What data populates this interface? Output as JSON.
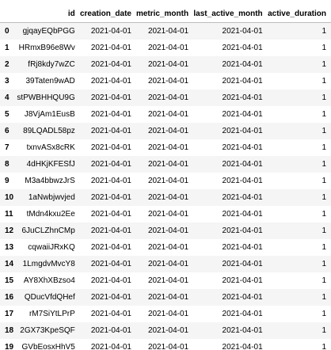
{
  "table": {
    "columns": [
      "",
      "id",
      "creation_date",
      "metric_month",
      "last_active_month",
      "active_duration"
    ],
    "rows": [
      [
        "0",
        "gjqayEQbPGG",
        "2021-04-01",
        "2021-04-01",
        "2021-04-01",
        "1"
      ],
      [
        "1",
        "HRmxB96e8Wv",
        "2021-04-01",
        "2021-04-01",
        "2021-04-01",
        "1"
      ],
      [
        "2",
        "fRj8kdy7wZC",
        "2021-04-01",
        "2021-04-01",
        "2021-04-01",
        "1"
      ],
      [
        "3",
        "39Taten9wAD",
        "2021-04-01",
        "2021-04-01",
        "2021-04-01",
        "1"
      ],
      [
        "4",
        "stPWBHHQU9G",
        "2021-04-01",
        "2021-04-01",
        "2021-04-01",
        "1"
      ],
      [
        "5",
        "J8VjAm1EusB",
        "2021-04-01",
        "2021-04-01",
        "2021-04-01",
        "1"
      ],
      [
        "6",
        "89LQADL58pz",
        "2021-04-01",
        "2021-04-01",
        "2021-04-01",
        "1"
      ],
      [
        "7",
        "txnvASx8cRK",
        "2021-04-01",
        "2021-04-01",
        "2021-04-01",
        "1"
      ],
      [
        "8",
        "4dHKjKFESfJ",
        "2021-04-01",
        "2021-04-01",
        "2021-04-01",
        "1"
      ],
      [
        "9",
        "M3a4bbwzJrS",
        "2021-04-01",
        "2021-04-01",
        "2021-04-01",
        "1"
      ],
      [
        "10",
        "1aNwbjwvjed",
        "2021-04-01",
        "2021-04-01",
        "2021-04-01",
        "1"
      ],
      [
        "11",
        "tMdn4kxu2Ee",
        "2021-04-01",
        "2021-04-01",
        "2021-04-01",
        "1"
      ],
      [
        "12",
        "6JuCLZhnCMp",
        "2021-04-01",
        "2021-04-01",
        "2021-04-01",
        "1"
      ],
      [
        "13",
        "cqwaiiJRxKQ",
        "2021-04-01",
        "2021-04-01",
        "2021-04-01",
        "1"
      ],
      [
        "14",
        "1LmgdvMvcY8",
        "2021-04-01",
        "2021-04-01",
        "2021-04-01",
        "1"
      ],
      [
        "15",
        "AY8XhXBzso4",
        "2021-04-01",
        "2021-04-01",
        "2021-04-01",
        "1"
      ],
      [
        "16",
        "QDucVfdQHef",
        "2021-04-01",
        "2021-04-01",
        "2021-04-01",
        "1"
      ],
      [
        "17",
        "rM7SiYtLPrP",
        "2021-04-01",
        "2021-04-01",
        "2021-04-01",
        "1"
      ],
      [
        "18",
        "2GX73KpeSQF",
        "2021-04-01",
        "2021-04-01",
        "2021-04-01",
        "1"
      ],
      [
        "19",
        "GVbEosxHhV5",
        "2021-04-01",
        "2021-04-01",
        "2021-04-01",
        "1"
      ]
    ]
  }
}
